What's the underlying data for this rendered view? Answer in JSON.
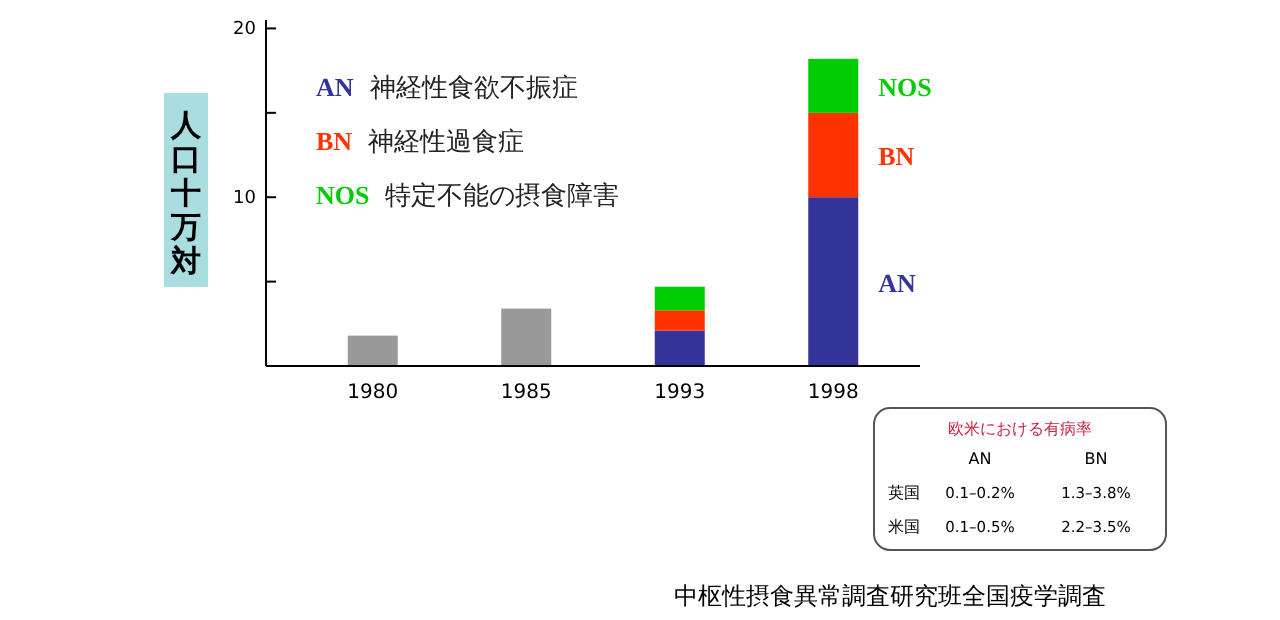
{
  "chart_data": {
    "type": "bar",
    "stacked": true,
    "ylabel": "人口十万対",
    "categories": [
      "1980",
      "1985",
      "1993",
      "1998"
    ],
    "series": [
      {
        "color": "#999999",
        "values": [
          1.8,
          3.4,
          null,
          null
        ]
      },
      {
        "name": "AN 神経性食欲不振症",
        "color": "#333399",
        "values": [
          null,
          null,
          2.1,
          10
        ]
      },
      {
        "name": "BN 神経性過食症",
        "color": "#ff3300",
        "values": [
          null,
          null,
          1.2,
          5
        ]
      },
      {
        "name": "NOS 特定不能の摂食障害",
        "color": "#00cc00",
        "values": [
          null,
          null,
          1.4,
          3.2
        ]
      }
    ],
    "ylim": [
      0,
      20.5
    ],
    "yticks": [
      {
        "value": 5,
        "label": null
      },
      10,
      {
        "value": 15,
        "label": null
      },
      20
    ],
    "grid": false,
    "legend": "top left",
    "annotations": [
      "NOS",
      "BN",
      "AN",
      "欧米における有病率",
      "AN",
      "BN",
      "英国",
      "0.1–0.2%",
      "1.3–3.8%",
      "米国",
      "0.1–0.5%",
      "2.2–3.5%",
      "中枢性摂食異常調査研究班全国疫学調査"
    ]
  }
}
